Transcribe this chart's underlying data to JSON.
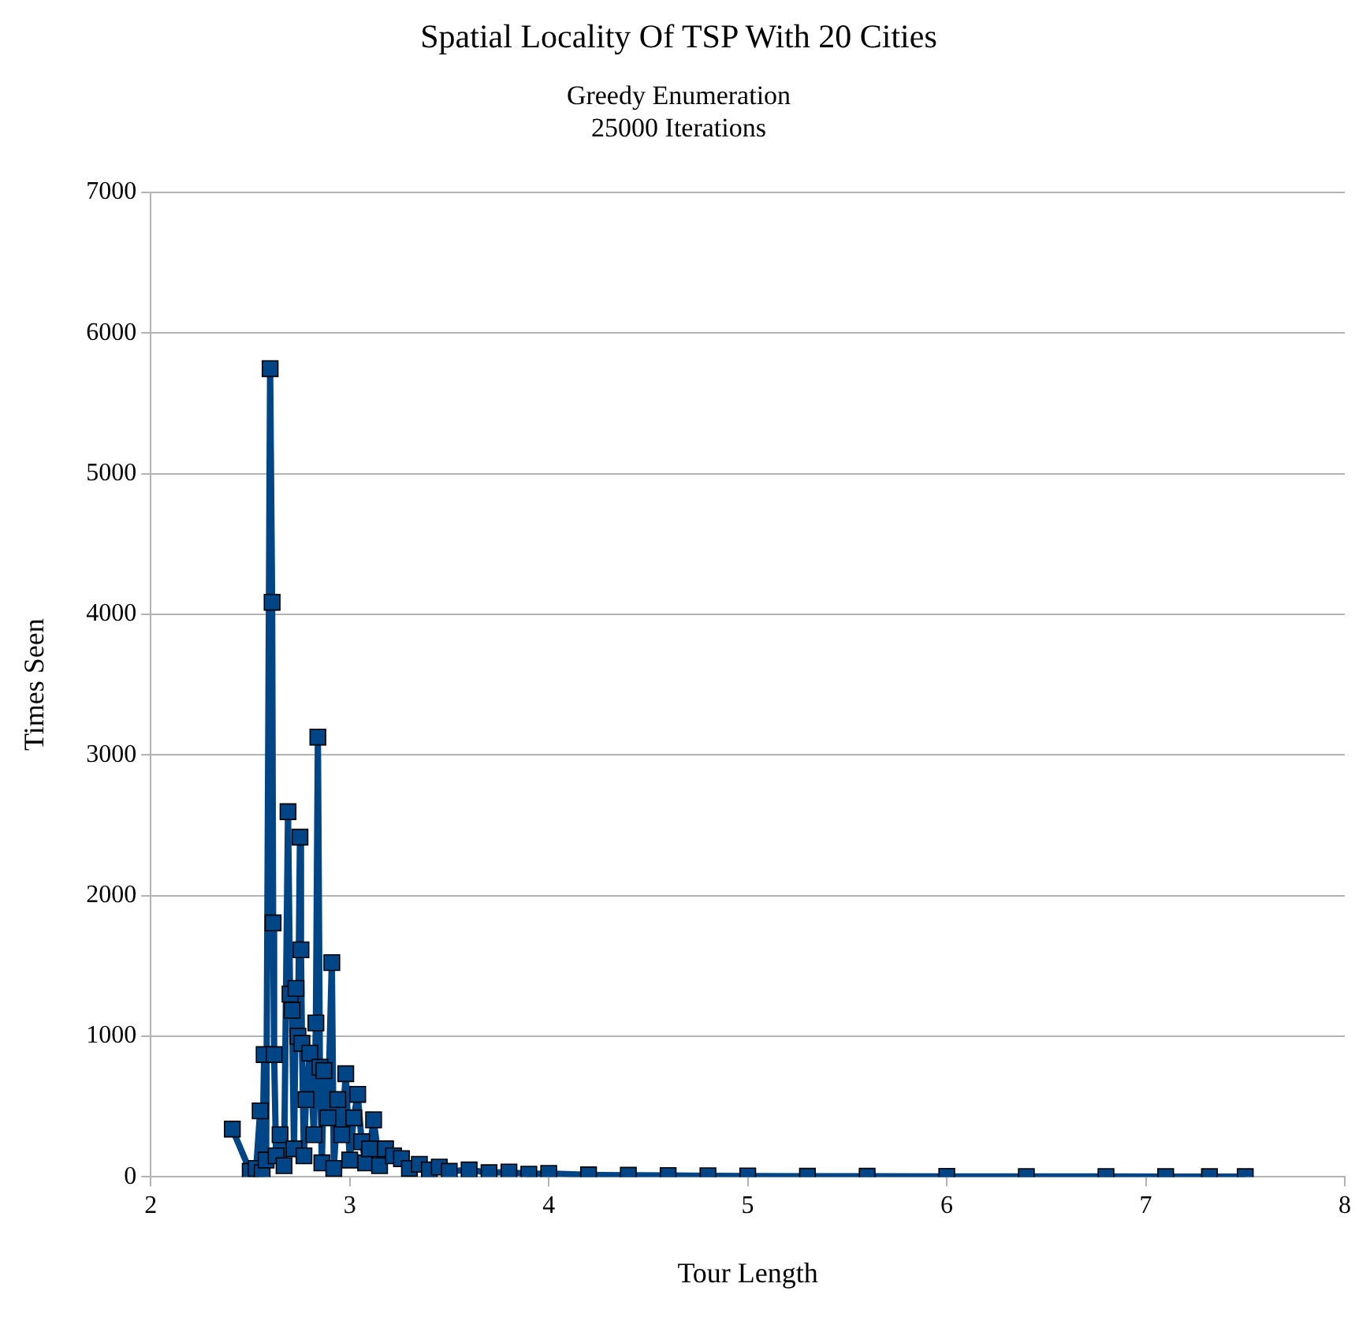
{
  "chart_data": {
    "type": "line",
    "title": "Spatial Locality Of TSP With 20 Cities",
    "subtitle": "Greedy Enumeration\n25000 Iterations",
    "xlabel": "Tour Length",
    "ylabel": "Times Seen",
    "xlim": [
      2,
      8
    ],
    "xticks": [
      2,
      3,
      4,
      5,
      6,
      7,
      8
    ],
    "ylim": [
      0,
      7000
    ],
    "yticks": [
      0,
      1000,
      2000,
      3000,
      4000,
      5000,
      6000,
      7000
    ],
    "grid": "y",
    "legend": false,
    "marker": "square",
    "line_style": "solid",
    "series": [
      {
        "color": "#004586",
        "x": [
          2.41,
          2.5,
          2.53,
          2.55,
          2.56,
          2.57,
          2.58,
          2.6,
          2.61,
          2.615,
          2.62,
          2.63,
          2.65,
          2.67,
          2.69,
          2.7,
          2.71,
          2.72,
          2.73,
          2.74,
          2.75,
          2.755,
          2.76,
          2.77,
          2.78,
          2.8,
          2.82,
          2.83,
          2.84,
          2.85,
          2.86,
          2.87,
          2.89,
          2.91,
          2.92,
          2.94,
          2.96,
          2.98,
          3.0,
          3.02,
          3.04,
          3.06,
          3.08,
          3.1,
          3.12,
          3.15,
          3.18,
          3.22,
          3.26,
          3.3,
          3.35,
          3.4,
          3.45,
          3.5,
          3.6,
          3.7,
          3.8,
          3.9,
          4.0,
          4.2,
          4.4,
          4.6,
          4.8,
          5.0,
          5.3,
          5.6,
          6.0,
          6.4,
          6.8,
          7.1,
          7.32,
          7.5
        ],
        "values": [
          340,
          40,
          60,
          470,
          30,
          870,
          120,
          5747,
          4086,
          1806,
          870,
          150,
          300,
          80,
          2597,
          1300,
          1185,
          200,
          1340,
          1000,
          2416,
          1615,
          950,
          150,
          550,
          880,
          300,
          1095,
          3127,
          780,
          100,
          756,
          420,
          1524,
          60,
          550,
          300,
          734,
          120,
          420,
          587,
          250,
          100,
          200,
          406,
          80,
          200,
          150,
          130,
          60,
          90,
          50,
          70,
          40,
          50,
          30,
          35,
          20,
          25,
          15,
          12,
          10,
          8,
          7,
          5,
          5,
          4,
          3,
          3,
          2,
          2,
          2
        ]
      }
    ]
  }
}
